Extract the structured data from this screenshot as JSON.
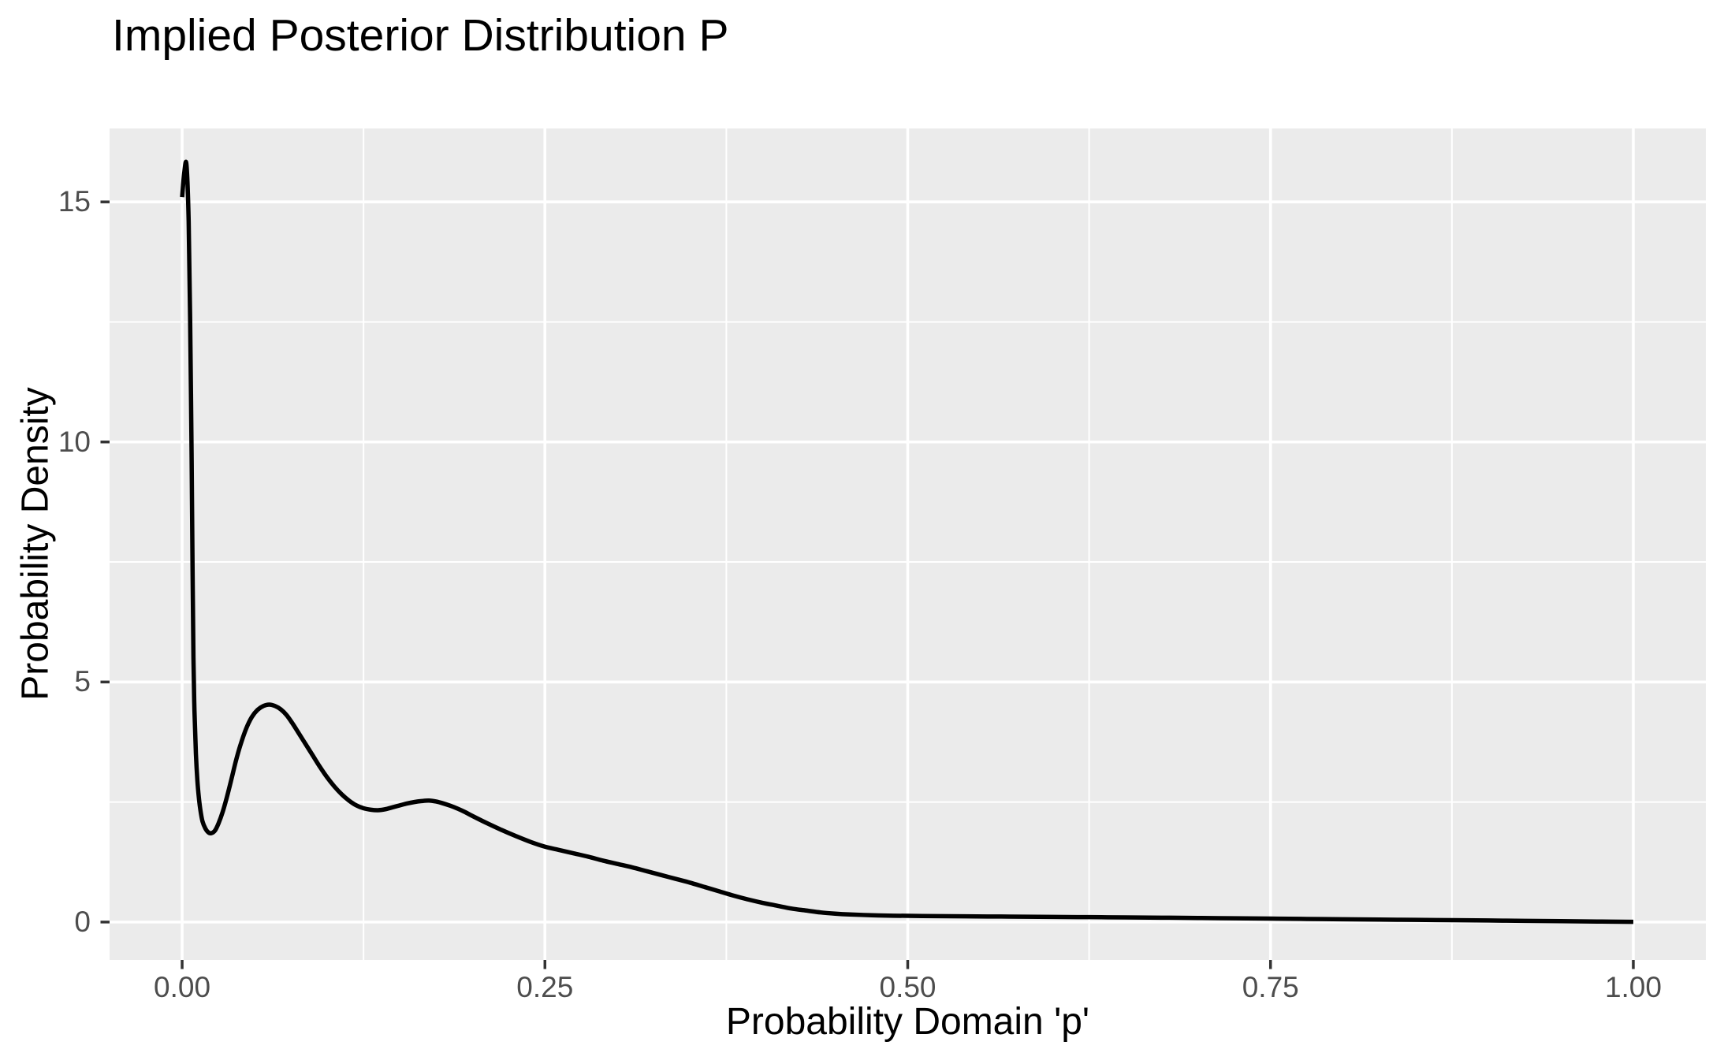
{
  "chart_data": {
    "type": "line",
    "geom": "density",
    "title": "Implied Posterior Distribution P",
    "xlabel": "Probability Domain 'p'",
    "ylabel": "Probability Density",
    "xlim": [
      -0.05,
      1.05
    ],
    "ylim": [
      -0.79,
      16.53
    ],
    "x_ticks": [
      {
        "value": 0.0,
        "label": "0.00"
      },
      {
        "value": 0.25,
        "label": "0.25"
      },
      {
        "value": 0.5,
        "label": "0.50"
      },
      {
        "value": 0.75,
        "label": "0.75"
      },
      {
        "value": 1.0,
        "label": "1.00"
      }
    ],
    "y_ticks": [
      {
        "value": 0,
        "label": "0"
      },
      {
        "value": 5,
        "label": "5"
      },
      {
        "value": 10,
        "label": "10"
      },
      {
        "value": 15,
        "label": "15"
      }
    ],
    "x_minor": [
      0.125,
      0.375,
      0.625,
      0.875
    ],
    "y_minor": [
      2.5,
      7.5,
      12.5
    ],
    "grid": "major+minor",
    "legend": "none",
    "theme": {
      "panel_bg": "#EBEBEB",
      "grid_color": "#FFFFFF",
      "line_color": "#000000",
      "tick_mark_color": "#333333",
      "tick_label_color": "#4D4D4D",
      "title_color": "#000000"
    },
    "series": [
      {
        "name": "posterior-density",
        "x": [
          0.0,
          0.0015,
          0.003,
          0.0045,
          0.0055,
          0.0065,
          0.0072,
          0.0078,
          0.0085,
          0.0095,
          0.0105,
          0.0115,
          0.0125,
          0.014,
          0.016,
          0.018,
          0.02,
          0.0225,
          0.025,
          0.028,
          0.031,
          0.034,
          0.037,
          0.04,
          0.044,
          0.048,
          0.052,
          0.056,
          0.06,
          0.064,
          0.068,
          0.072,
          0.076,
          0.08,
          0.085,
          0.09,
          0.095,
          0.1,
          0.105,
          0.11,
          0.115,
          0.12,
          0.125,
          0.13,
          0.135,
          0.14,
          0.145,
          0.15,
          0.155,
          0.16,
          0.165,
          0.17,
          0.175,
          0.18,
          0.185,
          0.19,
          0.195,
          0.2,
          0.21,
          0.22,
          0.23,
          0.24,
          0.25,
          0.26,
          0.27,
          0.28,
          0.29,
          0.3,
          0.31,
          0.32,
          0.33,
          0.34,
          0.35,
          0.36,
          0.37,
          0.38,
          0.39,
          0.4,
          0.41,
          0.42,
          0.43,
          0.44,
          0.45,
          0.46,
          0.475,
          0.49,
          0.51,
          0.54,
          0.57,
          0.6,
          0.625,
          0.65,
          0.675,
          0.7,
          0.725,
          0.75,
          0.775,
          0.8,
          0.825,
          0.85,
          0.875,
          0.9,
          0.925,
          0.95,
          0.975,
          1.0
        ],
        "y": [
          15.1,
          15.62,
          15.77,
          14.6,
          12.6,
          9.8,
          7.3,
          5.5,
          4.4,
          3.5,
          2.95,
          2.6,
          2.35,
          2.1,
          1.95,
          1.87,
          1.85,
          1.9,
          2.05,
          2.3,
          2.62,
          2.98,
          3.35,
          3.67,
          4.02,
          4.27,
          4.42,
          4.5,
          4.53,
          4.5,
          4.43,
          4.31,
          4.14,
          3.95,
          3.71,
          3.47,
          3.23,
          3.01,
          2.82,
          2.66,
          2.53,
          2.43,
          2.37,
          2.34,
          2.33,
          2.35,
          2.39,
          2.43,
          2.47,
          2.5,
          2.52,
          2.53,
          2.51,
          2.47,
          2.42,
          2.36,
          2.29,
          2.21,
          2.06,
          1.92,
          1.79,
          1.67,
          1.57,
          1.5,
          1.43,
          1.36,
          1.28,
          1.21,
          1.14,
          1.06,
          0.98,
          0.9,
          0.82,
          0.73,
          0.64,
          0.55,
          0.47,
          0.4,
          0.34,
          0.28,
          0.24,
          0.2,
          0.175,
          0.158,
          0.142,
          0.132,
          0.126,
          0.119,
          0.113,
          0.107,
          0.102,
          0.097,
          0.091,
          0.085,
          0.078,
          0.071,
          0.064,
          0.057,
          0.051,
          0.045,
          0.039,
          0.032,
          0.025,
          0.018,
          0.011,
          0.005
        ]
      }
    ]
  }
}
